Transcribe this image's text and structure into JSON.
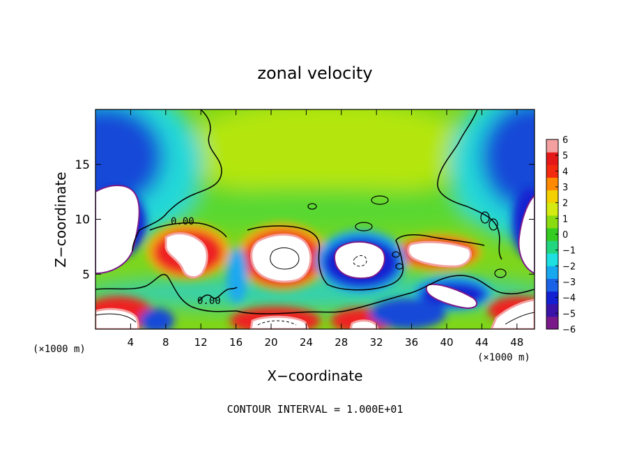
{
  "chart_data": {
    "type": "heatmap",
    "title": "zonal velocity",
    "xlabel": "X−coordinate",
    "ylabel": "Z−coordinate",
    "x_unit_label": "(×1000 m)",
    "footer": "CONTOUR INTERVAL = 1.000E+01",
    "contour_label": "0.00",
    "xlim": [
      0,
      50
    ],
    "ylim": [
      0,
      20
    ],
    "x_ticks": [
      4,
      8,
      12,
      16,
      20,
      24,
      28,
      32,
      36,
      40,
      44,
      48
    ],
    "y_ticks": [
      5,
      10,
      15
    ],
    "colorbar": {
      "ticks": [
        "6",
        "5",
        "4",
        "3",
        "2",
        "1",
        "0",
        "−1",
        "−2",
        "−3",
        "−4",
        "−5",
        "−6"
      ],
      "range": [
        -6,
        6
      ],
      "colors": [
        "#7a1a8a",
        "#3a14a8",
        "#1220d2",
        "#1a62e8",
        "#18a8f0",
        "#1ee0e0",
        "#22d680",
        "#34cc20",
        "#8adc10",
        "#d4ea10",
        "#f4d000",
        "#ff8a00",
        "#f42a10",
        "#e41818",
        "#f4a0a0"
      ],
      "saturation_color": "#ffffff"
    },
    "features": [
      {
        "name": "upper-left-negative-jet",
        "x": 2,
        "z": 15.5,
        "rx": 5,
        "rz": 4.5,
        "value": -4.5
      },
      {
        "name": "upper-right-negative-jet",
        "x": 48,
        "z": 15.5,
        "rx": 5,
        "rz": 4.5,
        "value": -4.5
      },
      {
        "name": "left-extreme-negative",
        "x": 1.5,
        "z": 9,
        "rx": 2.5,
        "rz": 3,
        "value": -6.5
      },
      {
        "name": "right-extreme-negative",
        "x": 49,
        "z": 9.5,
        "rx": 1.5,
        "rz": 3,
        "value": -6.5
      },
      {
        "name": "positive-cell-x8",
        "x": 8.5,
        "z": 7,
        "rx": 3,
        "rz": 2,
        "value": 6.5
      },
      {
        "name": "positive-cell-x20",
        "x": 21,
        "z": 6.5,
        "rx": 4,
        "rz": 2.5,
        "value": 7
      },
      {
        "name": "negative-cell-x30",
        "x": 30,
        "z": 6.5,
        "rx": 4,
        "rz": 2.3,
        "value": -7
      },
      {
        "name": "positive-cell-x39",
        "x": 39,
        "z": 7,
        "rx": 4,
        "rz": 1.5,
        "value": 6.5
      },
      {
        "name": "negative-cell-x42",
        "x": 41,
        "z": 3,
        "rx": 3.5,
        "rz": 1.2,
        "value": -6.5
      },
      {
        "name": "surface-positive-x1",
        "x": 1.5,
        "z": 1,
        "rx": 3,
        "rz": 1.4,
        "value": 6.5
      },
      {
        "name": "surface-negative-x5",
        "x": 5.5,
        "z": 1,
        "rx": 1.5,
        "rz": 1.2,
        "value": -3.5
      },
      {
        "name": "surface-positive-x20",
        "x": 20,
        "z": 1,
        "rx": 4.5,
        "rz": 1.3,
        "value": 6.5
      },
      {
        "name": "surface-positive-x30",
        "x": 30,
        "z": 1,
        "rx": 3.5,
        "rz": 1.2,
        "value": 6
      },
      {
        "name": "surface-negative-x35",
        "x": 36,
        "z": 1.2,
        "rx": 3,
        "rz": 1.4,
        "value": -4
      },
      {
        "name": "surface-positive-x48",
        "x": 48,
        "z": 2,
        "rx": 3,
        "rz": 1.4,
        "value": 6
      }
    ]
  }
}
